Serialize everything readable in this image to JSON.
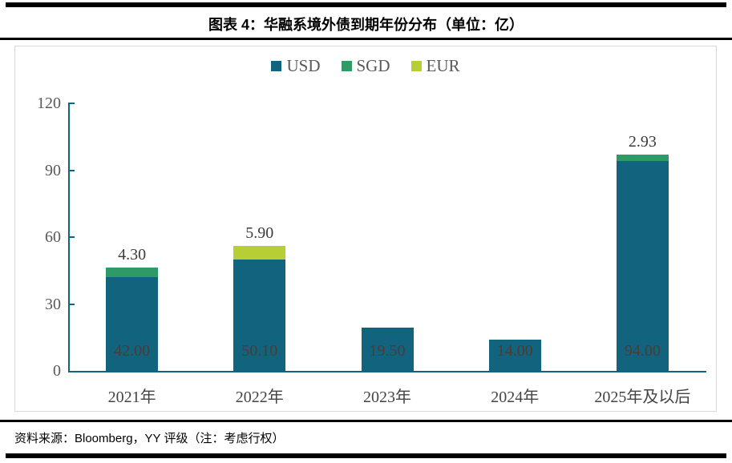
{
  "header": {
    "title": "图表 4：华融系境外债到期年份分布（单位：亿）"
  },
  "footer": {
    "source": "资料来源：Bloomberg，YY 评级（注：考虑行权）"
  },
  "colors": {
    "usd": "#11637e",
    "sgd": "#2f9a68",
    "eur": "#b7ce35",
    "axis": "#11637e",
    "tick_label": "#595959",
    "inside_label": "#4f3b31",
    "top_label": "#3b3b3b",
    "panel_border": "#d9d9d9"
  },
  "chart_data": {
    "type": "bar",
    "stacked": true,
    "title": "图表 4：华融系境外债到期年份分布（单位：亿）",
    "xlabel": "",
    "ylabel": "",
    "categories": [
      "2021年",
      "2022年",
      "2023年",
      "2024年",
      "2025年及以后"
    ],
    "series": [
      {
        "name": "USD",
        "color": "#11637e",
        "values": [
          42.0,
          50.1,
          19.5,
          14.0,
          94.0
        ]
      },
      {
        "name": "SGD",
        "color": "#2f9a68",
        "values": [
          4.3,
          0,
          0,
          0,
          2.93
        ]
      },
      {
        "name": "EUR",
        "color": "#b7ce35",
        "values": [
          0,
          5.9,
          0,
          0,
          0
        ]
      }
    ],
    "totals": [
      46.3,
      56.0,
      19.5,
      14.0,
      96.93
    ],
    "inside_labels": [
      "42.00",
      "50.10",
      "19.50",
      "14.00",
      "94.00"
    ],
    "top_labels": [
      "4.30",
      "5.90",
      "",
      "",
      "2.93"
    ],
    "ylim": [
      0,
      120
    ],
    "yticks": [
      0,
      30,
      60,
      90,
      120
    ],
    "grid": false,
    "legend_position": "top-center"
  }
}
